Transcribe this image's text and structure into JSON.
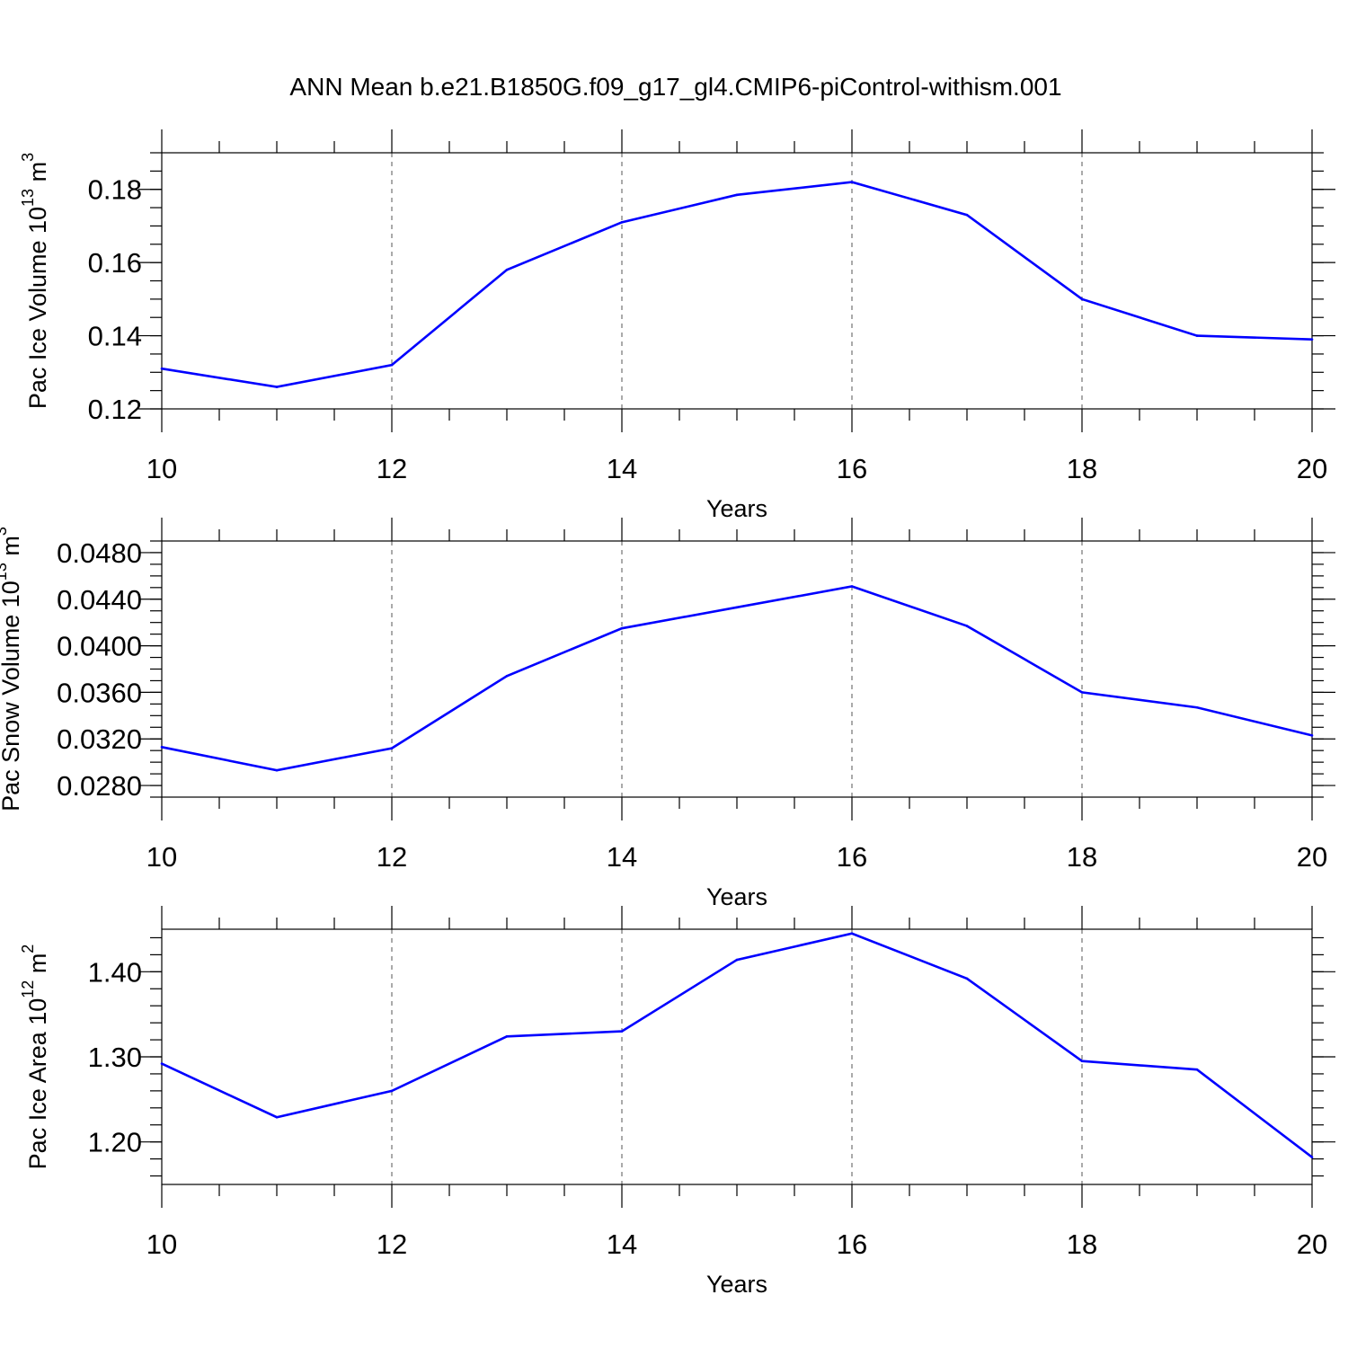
{
  "title": "ANN Mean b.e21.B1850G.f09_g17_gl4.CMIP6-piControl-withism.001",
  "chart_data": [
    {
      "type": "line",
      "xlabel": "Years",
      "ylabel": "Pac Ice Volume 10",
      "ylabel_exp": "13",
      "ylabel_unit": " m",
      "ylabel_unit_exp": "3",
      "xlim": [
        10,
        20
      ],
      "ylim": [
        0.12,
        0.19
      ],
      "x_ticks": [
        "10",
        "12",
        "14",
        "16",
        "18",
        "20"
      ],
      "y_ticks": [
        "0.12",
        "0.14",
        "0.16",
        "0.18"
      ],
      "grid": "dashed vertical lines at major x ticks",
      "x": [
        10,
        11,
        12,
        13,
        14,
        15,
        16,
        17,
        18,
        19,
        20
      ],
      "series": [
        {
          "color": "#0000ff",
          "values": [
            0.131,
            0.126,
            0.132,
            0.158,
            0.171,
            0.1785,
            0.182,
            0.173,
            0.15,
            0.14,
            0.139
          ]
        }
      ]
    },
    {
      "type": "line",
      "xlabel": "Years",
      "ylabel": "Pac Snow Volume 10",
      "ylabel_exp": "13",
      "ylabel_unit": " m",
      "ylabel_unit_exp": "3",
      "xlim": [
        10,
        20
      ],
      "ylim": [
        0.027,
        0.049
      ],
      "x_ticks": [
        "10",
        "12",
        "14",
        "16",
        "18",
        "20"
      ],
      "y_ticks": [
        "0.0280",
        "0.0320",
        "0.0360",
        "0.0400",
        "0.0440",
        "0.0480"
      ],
      "grid": "dashed vertical lines at major x ticks",
      "x": [
        10,
        11,
        12,
        13,
        14,
        15,
        16,
        17,
        18,
        19,
        20
      ],
      "series": [
        {
          "color": "#0000ff",
          "values": [
            0.0313,
            0.0293,
            0.0312,
            0.0374,
            0.0415,
            0.0433,
            0.0451,
            0.0417,
            0.036,
            0.0347,
            0.0323
          ]
        }
      ]
    },
    {
      "type": "line",
      "xlabel": "Years",
      "ylabel": "Pac Ice Area 10",
      "ylabel_exp": "12",
      "ylabel_unit": " m",
      "ylabel_unit_exp": "2",
      "xlim": [
        10,
        20
      ],
      "ylim": [
        1.15,
        1.45
      ],
      "x_ticks": [
        "10",
        "12",
        "14",
        "16",
        "18",
        "20"
      ],
      "y_ticks": [
        "1.20",
        "1.30",
        "1.40"
      ],
      "grid": "dashed vertical lines at major x ticks",
      "x": [
        10,
        11,
        12,
        13,
        14,
        15,
        16,
        17,
        18,
        19,
        20
      ],
      "series": [
        {
          "color": "#0000ff",
          "values": [
            1.292,
            1.229,
            1.26,
            1.324,
            1.33,
            1.414,
            1.445,
            1.392,
            1.295,
            1.285,
            1.182
          ]
        }
      ]
    }
  ]
}
